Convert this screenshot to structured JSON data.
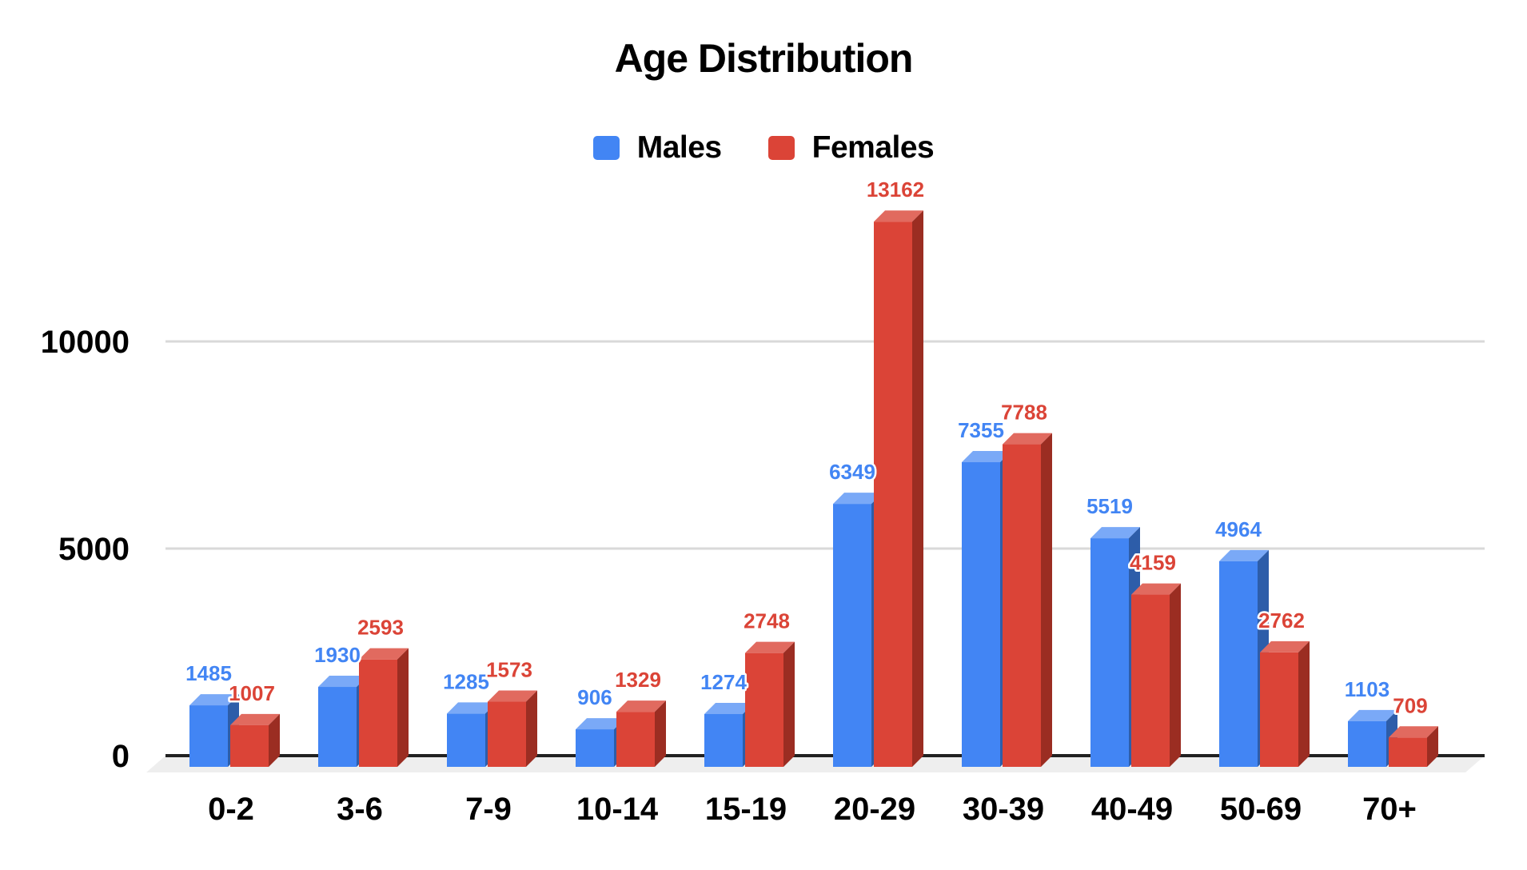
{
  "chart_data": {
    "type": "bar",
    "style": "3d-column",
    "title": "Age Distribution",
    "categories": [
      "0-2",
      "3-6",
      "7-9",
      "10-14",
      "15-19",
      "20-29",
      "30-39",
      "40-49",
      "50-69",
      "70+"
    ],
    "series": [
      {
        "name": "Males",
        "color": "#4285f4",
        "top_color": "#7aa9f7",
        "side_color": "#2d5da9",
        "label_color": "#4285f4",
        "values": [
          1485,
          1930,
          1285,
          906,
          1274,
          6349,
          7355,
          5519,
          4964,
          1103
        ]
      },
      {
        "name": "Females",
        "color": "#db4437",
        "top_color": "#e16a5f",
        "side_color": "#9b2d22",
        "label_color": "#db4437",
        "values": [
          1007,
          2593,
          1573,
          1329,
          2748,
          13162,
          7788,
          4159,
          2762,
          709
        ]
      }
    ],
    "xlabel": "",
    "ylabel": "",
    "ylim": [
      0,
      13500
    ],
    "yticks": [
      0,
      5000,
      10000
    ],
    "grid": true,
    "legend_position": "top",
    "background": "#ffffff",
    "axis_color": "#212121",
    "grid_color": "#d9d9d9",
    "floor_color": "#eeeeee",
    "tick_text_color": "#000000",
    "category_text_color": "#000000"
  }
}
